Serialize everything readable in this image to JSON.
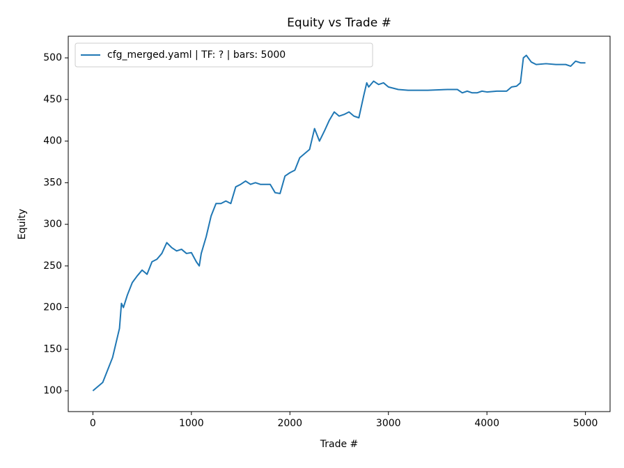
{
  "chart_data": {
    "type": "line",
    "title": "Equity vs Trade #",
    "x_label": "Trade #",
    "y_label": "Equity",
    "x": [
      0,
      50,
      100,
      150,
      200,
      230,
      250,
      270,
      290,
      310,
      350,
      400,
      450,
      500,
      550,
      600,
      650,
      700,
      750,
      800,
      850,
      900,
      950,
      1000,
      1050,
      1080,
      1100,
      1150,
      1200,
      1250,
      1300,
      1350,
      1400,
      1450,
      1500,
      1550,
      1600,
      1650,
      1700,
      1750,
      1800,
      1850,
      1900,
      1950,
      2000,
      2050,
      2100,
      2150,
      2200,
      2250,
      2300,
      2350,
      2400,
      2450,
      2500,
      2550,
      2600,
      2650,
      2700,
      2750,
      2780,
      2800,
      2850,
      2900,
      2950,
      3000,
      3100,
      3200,
      3400,
      3600,
      3700,
      3750,
      3800,
      3850,
      3900,
      3950,
      4000,
      4100,
      4200,
      4250,
      4300,
      4340,
      4370,
      4400,
      4450,
      4500,
      4600,
      4700,
      4800,
      4850,
      4900,
      4950,
      5000
    ],
    "series": [
      {
        "name": "cfg_merged.yaml | TF: ? | bars: 5000",
        "color": "#1f77b4",
        "values": [
          100,
          105,
          110,
          125,
          140,
          155,
          165,
          175,
          205,
          200,
          215,
          230,
          238,
          245,
          240,
          255,
          258,
          265,
          278,
          272,
          268,
          270,
          265,
          266,
          255,
          250,
          265,
          285,
          310,
          325,
          325,
          328,
          325,
          345,
          348,
          352,
          348,
          350,
          348,
          348,
          348,
          338,
          337,
          358,
          362,
          365,
          380,
          385,
          390,
          415,
          400,
          412,
          425,
          435,
          430,
          432,
          435,
          430,
          428,
          455,
          470,
          465,
          472,
          468,
          470,
          465,
          462,
          461,
          461,
          462,
          462,
          458,
          460,
          458,
          458,
          460,
          459,
          460,
          460,
          465,
          466,
          470,
          500,
          503,
          495,
          492,
          493,
          492,
          492,
          490,
          496,
          494,
          494
        ]
      }
    ],
    "xlim": [
      -250,
      5250
    ],
    "ylim": [
      75,
      526
    ],
    "xticks": [
      0,
      1000,
      2000,
      3000,
      4000,
      5000
    ],
    "yticks": [
      100,
      150,
      200,
      250,
      300,
      350,
      400,
      450,
      500
    ],
    "legend": "upper left",
    "grid": false
  }
}
